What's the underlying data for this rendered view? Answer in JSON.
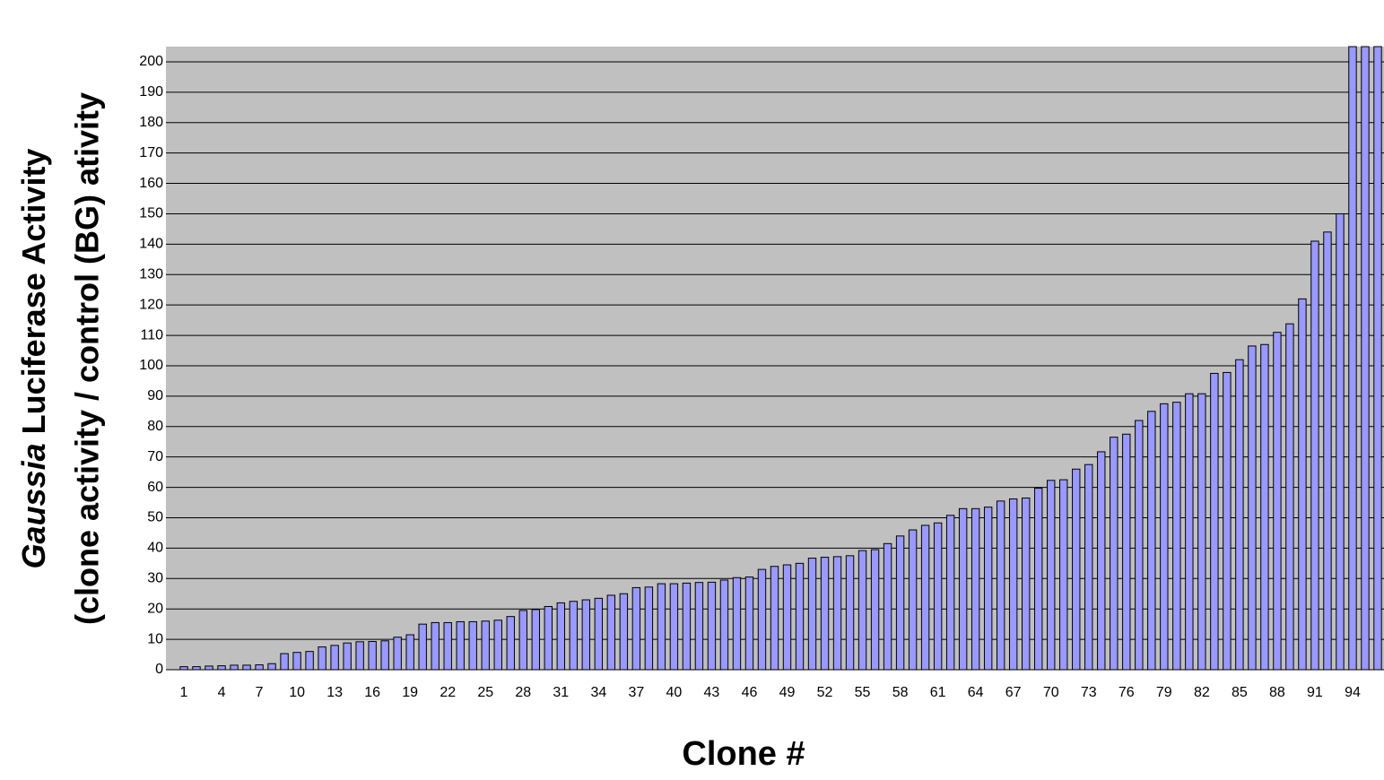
{
  "chart_data": {
    "type": "bar",
    "x_label": "Clone #",
    "y_label_italic": "Gaussia",
    "y_label_line1": "Luciferase Activity",
    "y_label_line2": "(clone activity / control (BG) ativity",
    "categories": [
      "1",
      null,
      null,
      "4",
      null,
      null,
      "7",
      null,
      null,
      "10",
      null,
      null,
      "13",
      null,
      null,
      "16",
      null,
      null,
      "19",
      null,
      null,
      "22",
      null,
      null,
      "25",
      null,
      null,
      "28",
      null,
      null,
      "31",
      null,
      null,
      "34",
      null,
      null,
      "37",
      null,
      null,
      "40",
      null,
      null,
      "43",
      null,
      null,
      "46",
      null,
      null,
      "49",
      null,
      null,
      "52",
      null,
      null,
      "55",
      null,
      null,
      "58",
      null,
      null,
      "61",
      null,
      null,
      "64",
      null,
      null,
      "67",
      null,
      null,
      "70",
      null,
      null,
      "73",
      null,
      null,
      "76",
      null,
      null,
      "79",
      null,
      null,
      "82",
      null,
      null,
      "85",
      null,
      null,
      "88",
      null,
      null,
      "91",
      null,
      null,
      "94",
      null,
      null
    ],
    "values": [
      1,
      1,
      1.2,
      1.3,
      1.5,
      1.5,
      1.6,
      2,
      5.3,
      5.7,
      6,
      7.5,
      8,
      8.8,
      9.2,
      9.3,
      9.5,
      10.7,
      11.5,
      15,
      15.5,
      15.5,
      15.8,
      15.8,
      16,
      16.3,
      17.5,
      19.5,
      19.8,
      20.8,
      22,
      22.5,
      23,
      23.5,
      24.5,
      25,
      27,
      27.2,
      28.3,
      28.3,
      28.5,
      28.7,
      28.8,
      29.5,
      30.3,
      30.5,
      33,
      34,
      34.5,
      35,
      36.7,
      37,
      37.2,
      37.5,
      39.2,
      39.5,
      41.5,
      44,
      46,
      47.5,
      48.3,
      50.8,
      53,
      53,
      53.5,
      55.5,
      56.2,
      56.5,
      59.7,
      62.3,
      62.5,
      66,
      67.5,
      71.7,
      76.5,
      77.5,
      82,
      85,
      87.5,
      88,
      90.8,
      90.8,
      97.5,
      97.8,
      102,
      106.5,
      107,
      111,
      113.8,
      122,
      141,
      144,
      150,
      205,
      205,
      205
    ],
    "color": "#9999ff",
    "ylim": [
      0,
      205
    ],
    "yticks": [
      0,
      10,
      20,
      30,
      40,
      50,
      60,
      70,
      80,
      90,
      100,
      110,
      120,
      130,
      140,
      150,
      160,
      170,
      180,
      190,
      200
    ],
    "grid": true
  }
}
